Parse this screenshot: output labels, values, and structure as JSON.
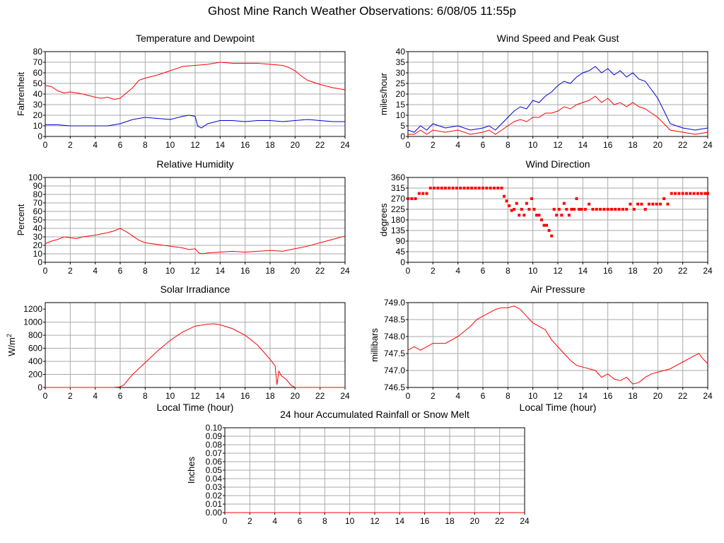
{
  "page": {
    "title": "Ghost Mine Ranch Weather Observations: 6/08/05 11:55p"
  },
  "colors": {
    "red": "#ff0000",
    "blue": "#0000cc",
    "grid": "#aaaaaa"
  },
  "chart_data": [
    {
      "id": "temp",
      "type": "line",
      "title": "Temperature and Dewpoint",
      "ylabel": "Fahrenheit",
      "xlabel": "",
      "xlim": [
        0,
        24
      ],
      "ylim": [
        0,
        80
      ],
      "xticks": [
        0,
        2,
        4,
        6,
        8,
        10,
        12,
        14,
        16,
        18,
        20,
        22,
        24
      ],
      "yticks": [
        0,
        10,
        20,
        30,
        40,
        50,
        60,
        70,
        80
      ],
      "ytick_labels": [
        "0",
        "10",
        "20",
        "30",
        "40",
        "50",
        "60",
        "70",
        "80"
      ],
      "grid": true,
      "series": [
        {
          "color": "#ff0000",
          "x": [
            0,
            0.5,
            1,
            1.5,
            2,
            3,
            4,
            4.5,
            5,
            5.5,
            6,
            6.5,
            7,
            7.5,
            8,
            9,
            10,
            11,
            12,
            13,
            14,
            15,
            16,
            17,
            18,
            19,
            19.5,
            20,
            20.5,
            21,
            22,
            23,
            24
          ],
          "y": [
            48,
            47,
            43,
            41,
            42,
            40,
            37,
            36,
            37,
            35,
            36,
            41,
            46,
            53,
            55,
            58,
            62,
            66,
            67,
            68,
            70,
            69,
            69,
            69,
            68,
            67,
            65,
            62,
            57,
            53,
            49,
            46,
            44
          ]
        },
        {
          "color": "#0000cc",
          "x": [
            0,
            1,
            2,
            3,
            4,
            5,
            6,
            6.5,
            7,
            8,
            9,
            10,
            11,
            11.5,
            12,
            12.2,
            12.5,
            13,
            14,
            15,
            16,
            17,
            18,
            19,
            20,
            21,
            22,
            23,
            24
          ],
          "y": [
            11,
            11,
            10,
            10,
            10,
            10,
            12,
            14,
            16,
            18,
            17,
            16,
            19,
            20,
            19,
            10,
            8,
            12,
            15,
            15,
            14,
            15,
            15,
            14,
            15,
            16,
            15,
            14,
            14
          ]
        }
      ]
    },
    {
      "id": "wind",
      "type": "line",
      "title": "Wind Speed and Peak Gust",
      "ylabel": "miles/hour",
      "xlabel": "",
      "xlim": [
        0,
        24
      ],
      "ylim": [
        0,
        40
      ],
      "xticks": [
        0,
        2,
        4,
        6,
        8,
        10,
        12,
        14,
        16,
        18,
        20,
        22,
        24
      ],
      "yticks": [
        0,
        5,
        10,
        15,
        20,
        25,
        30,
        35,
        40
      ],
      "ytick_labels": [
        "0",
        "5",
        "10",
        "15",
        "20",
        "25",
        "30",
        "35",
        "40"
      ],
      "grid": true,
      "series": [
        {
          "color": "#0000cc",
          "x": [
            0,
            0.5,
            1,
            1.5,
            2,
            3,
            4,
            5,
            6,
            6.5,
            7,
            7.5,
            8,
            8.5,
            9,
            9.5,
            10,
            10.5,
            11,
            11.5,
            12,
            12.5,
            13,
            13.5,
            14,
            14.5,
            15,
            15.5,
            16,
            16.5,
            17,
            17.5,
            18,
            18.5,
            19,
            19.5,
            20,
            20.5,
            21,
            22,
            23,
            24
          ],
          "y": [
            3,
            2,
            5,
            3,
            6,
            4,
            5,
            3,
            4,
            5,
            3,
            6,
            9,
            12,
            14,
            13,
            17,
            16,
            19,
            21,
            24,
            26,
            25,
            28,
            30,
            31,
            33,
            30,
            32,
            29,
            31,
            28,
            30,
            27,
            26,
            22,
            18,
            12,
            6,
            4,
            3,
            4
          ]
        },
        {
          "color": "#ff0000",
          "x": [
            0,
            0.5,
            1,
            1.5,
            2,
            3,
            4,
            5,
            6,
            6.5,
            7,
            7.5,
            8,
            8.5,
            9,
            9.5,
            10,
            10.5,
            11,
            11.5,
            12,
            12.5,
            13,
            13.5,
            14,
            14.5,
            15,
            15.5,
            16,
            16.5,
            17,
            17.5,
            18,
            18.5,
            19,
            19.5,
            20,
            20.5,
            21,
            22,
            23,
            24
          ],
          "y": [
            1,
            1,
            3,
            1,
            3,
            2,
            3,
            1,
            2,
            3,
            1,
            3,
            5,
            7,
            8,
            7,
            9,
            9,
            11,
            11,
            12,
            14,
            13,
            15,
            16,
            17,
            19,
            16,
            18,
            15,
            16,
            14,
            16,
            14,
            13,
            11,
            9,
            6,
            3,
            2,
            1,
            2
          ]
        }
      ]
    },
    {
      "id": "rh",
      "type": "line",
      "title": "Relative Humidity",
      "ylabel": "Percent",
      "xlabel": "",
      "xlim": [
        0,
        24
      ],
      "ylim": [
        0,
        100
      ],
      "xticks": [
        0,
        2,
        4,
        6,
        8,
        10,
        12,
        14,
        16,
        18,
        20,
        22,
        24
      ],
      "yticks": [
        0,
        10,
        20,
        30,
        40,
        50,
        60,
        70,
        80,
        90,
        100
      ],
      "ytick_labels": [
        "0",
        "10",
        "20",
        "30",
        "40",
        "50",
        "60",
        "70",
        "80",
        "90",
        "100"
      ],
      "grid": true,
      "series": [
        {
          "color": "#ff0000",
          "x": [
            0,
            0.5,
            1,
            1.5,
            2,
            2.5,
            3,
            4,
            5,
            5.5,
            6,
            6.5,
            7,
            7.5,
            8,
            9,
            10,
            11,
            11.5,
            12,
            12.3,
            12.6,
            13,
            14,
            15,
            16,
            17,
            18,
            19,
            20,
            21,
            22,
            23,
            24
          ],
          "y": [
            22,
            25,
            27,
            30,
            29,
            28,
            30,
            32,
            35,
            37,
            40,
            36,
            31,
            26,
            23,
            21,
            19,
            17,
            15,
            16,
            11,
            10,
            11,
            12,
            13,
            12,
            13,
            14,
            13,
            16,
            19,
            23,
            27,
            31
          ]
        }
      ]
    },
    {
      "id": "wdir",
      "type": "scatter",
      "title": "Wind Direction",
      "ylabel": "degrees",
      "xlabel": "",
      "xlim": [
        0,
        24
      ],
      "ylim": [
        0,
        360
      ],
      "xticks": [
        0,
        2,
        4,
        6,
        8,
        10,
        12,
        14,
        16,
        18,
        20,
        22,
        24
      ],
      "yticks": [
        0,
        45,
        90,
        135,
        180,
        225,
        270,
        315,
        360
      ],
      "ytick_labels": [
        "0",
        "45",
        "90",
        "135",
        "180",
        "225",
        "270",
        "315",
        "360"
      ],
      "grid": true,
      "series": [
        {
          "color": "#ff0000",
          "x": [
            0,
            0.3,
            0.6,
            0.9,
            1.2,
            1.5,
            1.8,
            2.1,
            2.4,
            2.7,
            3.0,
            3.3,
            3.6,
            3.9,
            4.2,
            4.5,
            4.8,
            5.1,
            5.4,
            5.7,
            6.0,
            6.3,
            6.6,
            6.9,
            7.2,
            7.5,
            7.7,
            7.9,
            8.1,
            8.3,
            8.5,
            8.7,
            8.9,
            9.1,
            9.3,
            9.5,
            9.7,
            9.9,
            10.1,
            10.3,
            10.5,
            10.7,
            10.9,
            11.1,
            11.3,
            11.5,
            11.7,
            11.9,
            12.1,
            12.3,
            12.5,
            12.7,
            12.9,
            13.1,
            13.3,
            13.5,
            13.7,
            13.9,
            14.2,
            14.5,
            14.8,
            15.1,
            15.4,
            15.7,
            16.0,
            16.3,
            16.6,
            16.9,
            17.2,
            17.5,
            17.8,
            18.1,
            18.4,
            18.7,
            19.0,
            19.3,
            19.6,
            19.9,
            20.2,
            20.5,
            20.8,
            21.1,
            21.4,
            21.7,
            22.0,
            22.3,
            22.6,
            22.9,
            23.2,
            23.5,
            23.8,
            24.0
          ],
          "y": [
            270,
            270,
            270,
            292,
            292,
            292,
            315,
            315,
            315,
            315,
            315,
            315,
            315,
            315,
            315,
            315,
            315,
            315,
            315,
            315,
            315,
            315,
            315,
            315,
            315,
            315,
            280,
            260,
            240,
            220,
            225,
            250,
            200,
            225,
            200,
            250,
            225,
            270,
            225,
            200,
            200,
            180,
            157,
            157,
            135,
            112,
            225,
            200,
            225,
            200,
            250,
            225,
            200,
            225,
            225,
            270,
            225,
            225,
            225,
            247,
            225,
            225,
            225,
            225,
            225,
            225,
            225,
            225,
            225,
            225,
            247,
            225,
            247,
            247,
            225,
            247,
            247,
            247,
            247,
            270,
            247,
            292,
            292,
            292,
            292,
            292,
            292,
            292,
            292,
            292,
            292,
            292
          ]
        }
      ]
    },
    {
      "id": "solar",
      "type": "line",
      "title": "Solar Irradiance",
      "ylabel": "W/m",
      "ylabel_sup": "2",
      "xlabel": "Local Time (hour)",
      "xlim": [
        0,
        24
      ],
      "ylim": [
        0,
        1300
      ],
      "xticks": [
        0,
        2,
        4,
        6,
        8,
        10,
        12,
        14,
        16,
        18,
        20,
        22,
        24
      ],
      "yticks": [
        0,
        200,
        400,
        600,
        800,
        1000,
        1200
      ],
      "ytick_labels": [
        "0",
        "200",
        "400",
        "600",
        "800",
        "1000",
        "1200"
      ],
      "grid": true,
      "series": [
        {
          "color": "#ff0000",
          "x": [
            0,
            5.5,
            6,
            6.3,
            6.6,
            7,
            8,
            9,
            10,
            11,
            12,
            13,
            13.5,
            14,
            15,
            16,
            17,
            18,
            18.4,
            18.55,
            18.7,
            18.9,
            19.3,
            19.7,
            20,
            21,
            24
          ],
          "y": [
            0,
            0,
            10,
            40,
            110,
            200,
            380,
            560,
            720,
            850,
            940,
            970,
            975,
            960,
            900,
            800,
            650,
            430,
            330,
            40,
            250,
            180,
            120,
            30,
            0,
            0,
            0
          ]
        }
      ]
    },
    {
      "id": "press",
      "type": "line",
      "title": "Air Pressure",
      "ylabel": "millibars",
      "xlabel": "Local Time (hour)",
      "xlim": [
        0,
        24
      ],
      "ylim": [
        746.5,
        749.0
      ],
      "xticks": [
        0,
        2,
        4,
        6,
        8,
        10,
        12,
        14,
        16,
        18,
        20,
        22,
        24
      ],
      "yticks": [
        746.5,
        747.0,
        747.5,
        748.0,
        748.5,
        749.0
      ],
      "ytick_labels": [
        "746.5",
        "747.0",
        "747.5",
        "748.0",
        "748.5",
        "749.0"
      ],
      "grid": true,
      "series": [
        {
          "color": "#ff0000",
          "x": [
            0,
            0.5,
            1,
            1.5,
            2,
            3,
            3.5,
            4,
            5,
            5.5,
            6,
            6.5,
            7,
            7.5,
            8,
            8.5,
            9,
            9.5,
            10,
            10.5,
            11,
            11.5,
            12,
            12.5,
            13,
            13.5,
            14,
            15,
            15.5,
            16,
            16.5,
            17,
            17.5,
            18,
            18.5,
            19,
            19.5,
            20,
            20.5,
            21,
            21.5,
            22,
            22.5,
            23,
            23.3,
            23.6,
            24
          ],
          "y": [
            747.6,
            747.7,
            747.6,
            747.7,
            747.8,
            747.8,
            747.9,
            748.0,
            748.3,
            748.5,
            748.6,
            748.7,
            748.8,
            748.85,
            748.85,
            748.9,
            748.8,
            748.6,
            748.4,
            748.3,
            748.2,
            747.9,
            747.7,
            747.5,
            747.3,
            747.15,
            747.1,
            747.0,
            746.8,
            746.9,
            746.75,
            746.7,
            746.8,
            746.6,
            746.65,
            746.8,
            746.9,
            746.95,
            747.0,
            747.05,
            747.15,
            747.25,
            747.35,
            747.45,
            747.5,
            747.35,
            747.2
          ]
        }
      ]
    },
    {
      "id": "rain",
      "type": "line",
      "title": "24 hour Accumulated Rainfall or Snow Melt",
      "ylabel": "Inches",
      "xlabel": "",
      "xlim": [
        0,
        24
      ],
      "ylim": [
        0,
        0.1
      ],
      "xticks": [
        0,
        2,
        4,
        6,
        8,
        10,
        12,
        14,
        16,
        18,
        20,
        22,
        24
      ],
      "yticks": [
        0,
        0.01,
        0.02,
        0.03,
        0.04,
        0.05,
        0.06,
        0.07,
        0.08,
        0.09,
        0.1
      ],
      "ytick_labels": [
        "0.00",
        "0.01",
        "0.02",
        "0.03",
        "0.04",
        "0.05",
        "0.06",
        "0.07",
        "0.08",
        "0.09",
        "0.10"
      ],
      "grid": true,
      "series": [
        {
          "color": "#ff0000",
          "x": [
            0,
            24
          ],
          "y": [
            0,
            0
          ]
        }
      ]
    }
  ]
}
